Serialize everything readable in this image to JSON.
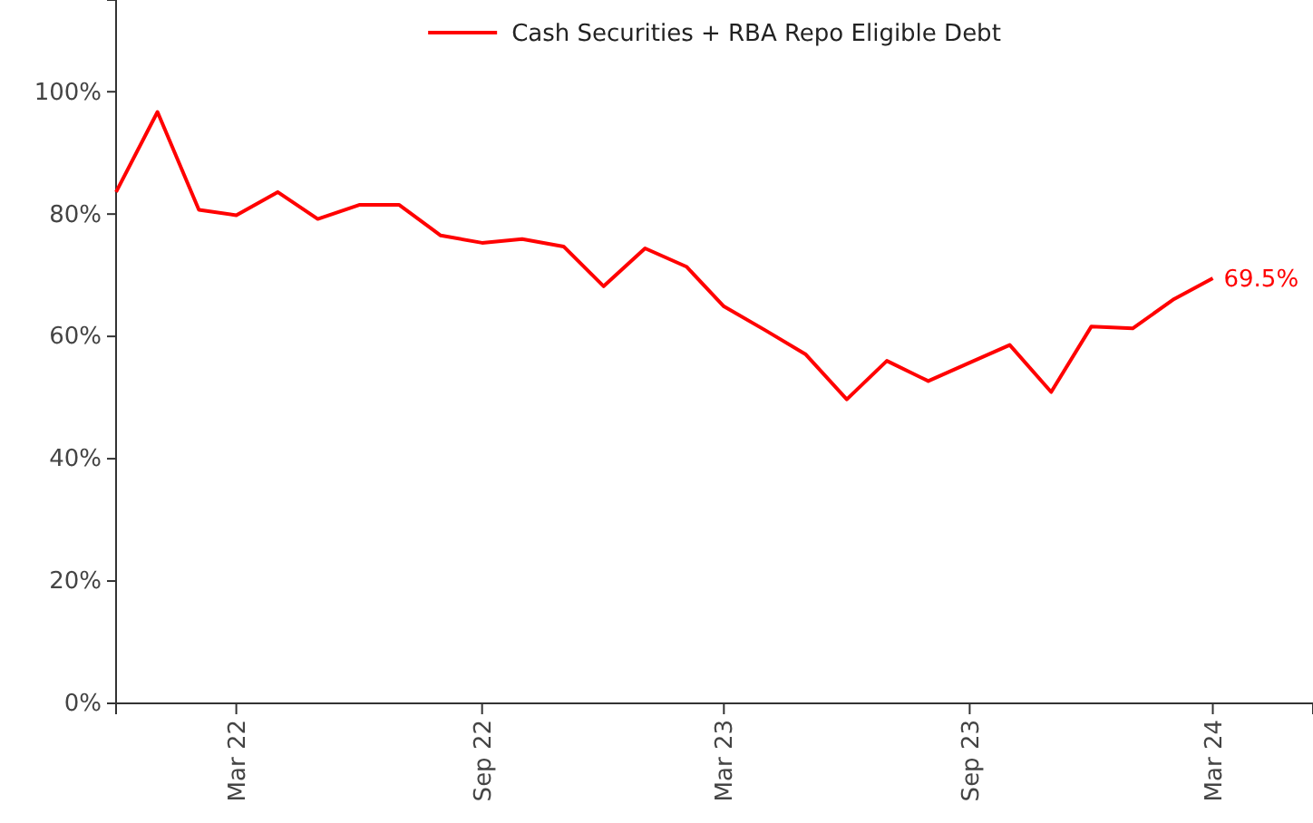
{
  "chart_data": {
    "type": "line",
    "x": [
      "2021-12",
      "2022-01",
      "2022-02",
      "2022-03",
      "2022-04",
      "2022-05",
      "2022-06",
      "2022-07",
      "2022-08",
      "2022-09",
      "2022-10",
      "2022-11",
      "2022-12",
      "2023-01",
      "2023-02",
      "2023-03",
      "2023-04",
      "2023-05",
      "2023-06",
      "2023-07",
      "2023-08",
      "2023-09",
      "2023-10",
      "2023-11",
      "2023-12",
      "2024-01",
      "2024-02",
      "2024-03"
    ],
    "series": [
      {
        "name": "Cash Securities + RBA Repo Eligible Debt",
        "color": "#ff0000",
        "values": [
          83.6,
          96.7,
          80.7,
          79.8,
          83.6,
          79.2,
          81.5,
          81.5,
          76.5,
          75.3,
          75.9,
          74.7,
          68.2,
          74.4,
          71.4,
          64.9,
          61.0,
          57.1,
          49.7,
          56.0,
          52.7,
          55.7,
          58.6,
          50.9,
          61.6,
          61.3,
          66.1,
          69.5
        ]
      }
    ],
    "xlim": [
      "2021-12",
      "2024-05-15"
    ],
    "xticks": [
      {
        "value": "2022-03",
        "label": "Mar 22"
      },
      {
        "value": "2022-09",
        "label": "Sep 22"
      },
      {
        "value": "2023-03",
        "label": "Mar 23"
      },
      {
        "value": "2023-09",
        "label": "Sep 23"
      },
      {
        "value": "2024-03",
        "label": "Mar 24"
      }
    ],
    "ylim": [
      0,
      115
    ],
    "yticks": [
      {
        "value": 0,
        "label": "0%"
      },
      {
        "value": 20,
        "label": "20%"
      },
      {
        "value": 40,
        "label": "40%"
      },
      {
        "value": 60,
        "label": "60%"
      },
      {
        "value": 80,
        "label": "80%"
      },
      {
        "value": 100,
        "label": "100%"
      }
    ],
    "annotations": [
      {
        "text": "69.5%",
        "x": "2024-03",
        "y": 69.5
      }
    ],
    "legend": "top",
    "grid": false,
    "marker": "none",
    "line_style": "solid"
  }
}
